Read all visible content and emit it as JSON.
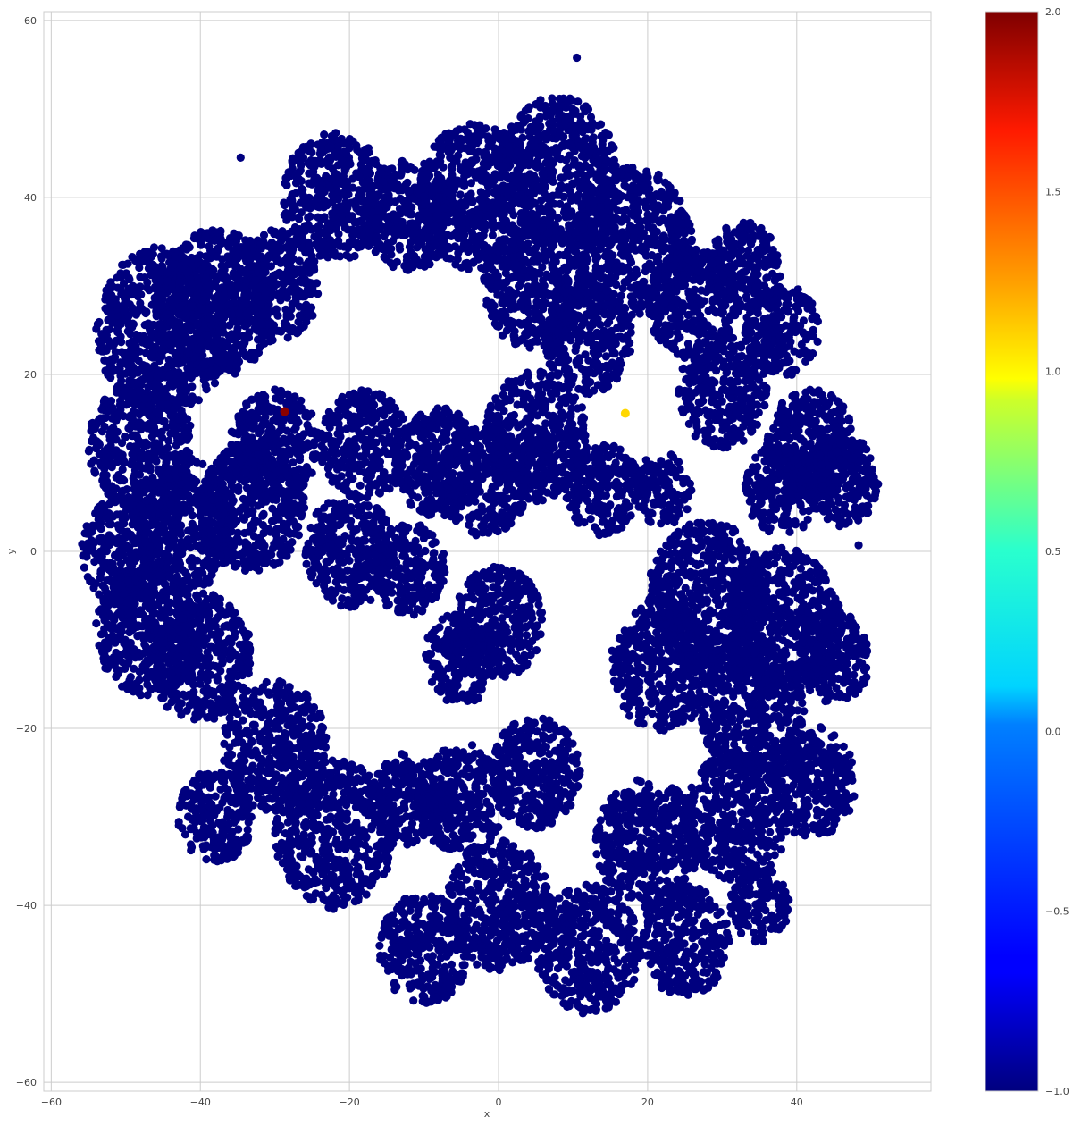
{
  "chart_data": {
    "type": "scatter",
    "title": "",
    "xlabel": "x",
    "ylabel": "y",
    "xlim": [
      -61,
      58
    ],
    "ylim": [
      -61,
      61
    ],
    "xticks": [
      -60,
      -40,
      -20,
      0,
      20,
      40
    ],
    "xtick_labels": [
      "−60",
      "−40",
      "−20",
      "0",
      "20",
      "40"
    ],
    "yticks": [
      -60,
      -40,
      -20,
      0,
      20,
      40,
      60
    ],
    "ytick_labels": [
      "−60",
      "−40",
      "−20",
      "0",
      "20",
      "40",
      "60"
    ],
    "grid": true,
    "colormap": "jet",
    "colorbar": {
      "vmin": -1.0,
      "vmax": 2.0,
      "ticks": [
        -1.0,
        -0.5,
        0.0,
        0.5,
        1.0,
        1.5,
        2.0
      ],
      "tick_labels": [
        "−1.0",
        "−0.5",
        "0.0",
        "0.5",
        "1.0",
        "1.5",
        "2.0"
      ]
    },
    "background_label": -1,
    "background_color": "#00007f",
    "clusters": [
      {
        "cx": -45,
        "cy": 25,
        "r": 9
      },
      {
        "cx": -48,
        "cy": 12,
        "r": 7
      },
      {
        "cx": -38,
        "cy": 28,
        "r": 8
      },
      {
        "cx": -30,
        "cy": 30,
        "r": 6
      },
      {
        "cx": -22,
        "cy": 40,
        "r": 7
      },
      {
        "cx": -12,
        "cy": 38,
        "r": 6
      },
      {
        "cx": -50,
        "cy": 0,
        "r": 6
      },
      {
        "cx": -42,
        "cy": 3,
        "r": 7
      },
      {
        "cx": -33,
        "cy": 5,
        "r": 7
      },
      {
        "cx": -47,
        "cy": -9,
        "r": 7
      },
      {
        "cx": -40,
        "cy": -12,
        "r": 7
      },
      {
        "cx": -30,
        "cy": 12,
        "r": 6
      },
      {
        "cx": -18,
        "cy": 12,
        "r": 6
      },
      {
        "cx": -8,
        "cy": 10,
        "r": 6
      },
      {
        "cx": -20,
        "cy": 0,
        "r": 6
      },
      {
        "cx": -12,
        "cy": -2,
        "r": 5
      },
      {
        "cx": -30,
        "cy": -22,
        "r": 7
      },
      {
        "cx": -38,
        "cy": -30,
        "r": 5
      },
      {
        "cx": -22,
        "cy": -32,
        "r": 8
      },
      {
        "cx": -12,
        "cy": -28,
        "r": 5
      },
      {
        "cx": -3,
        "cy": 40,
        "r": 8
      },
      {
        "cx": 8,
        "cy": 43,
        "r": 8
      },
      {
        "cx": 18,
        "cy": 35,
        "r": 8
      },
      {
        "cx": 5,
        "cy": 30,
        "r": 7
      },
      {
        "cx": 12,
        "cy": 24,
        "r": 6
      },
      {
        "cx": 26,
        "cy": 28,
        "r": 6
      },
      {
        "cx": 33,
        "cy": 32,
        "r": 5
      },
      {
        "cx": 38,
        "cy": 25,
        "r": 5
      },
      {
        "cx": 30,
        "cy": 18,
        "r": 6
      },
      {
        "cx": 5,
        "cy": 13,
        "r": 7
      },
      {
        "cx": -2,
        "cy": 8,
        "r": 6
      },
      {
        "cx": 14,
        "cy": 7,
        "r": 5
      },
      {
        "cx": 22,
        "cy": 7,
        "r": 4
      },
      {
        "cx": 42,
        "cy": 12,
        "r": 6
      },
      {
        "cx": 46,
        "cy": 8,
        "r": 5
      },
      {
        "cx": 38,
        "cy": 7,
        "r": 5
      },
      {
        "cx": 0,
        "cy": -8,
        "r": 6
      },
      {
        "cx": -5,
        "cy": -12,
        "r": 5
      },
      {
        "cx": 28,
        "cy": -5,
        "r": 8
      },
      {
        "cx": 38,
        "cy": -8,
        "r": 8
      },
      {
        "cx": 22,
        "cy": -13,
        "r": 7
      },
      {
        "cx": 34,
        "cy": -18,
        "r": 7
      },
      {
        "cx": 45,
        "cy": -12,
        "r": 5
      },
      {
        "cx": -5,
        "cy": -28,
        "r": 6
      },
      {
        "cx": 5,
        "cy": -25,
        "r": 6
      },
      {
        "cx": 0,
        "cy": -40,
        "r": 7
      },
      {
        "cx": -10,
        "cy": -45,
        "r": 6
      },
      {
        "cx": 12,
        "cy": -45,
        "r": 7
      },
      {
        "cx": 20,
        "cy": -33,
        "r": 7
      },
      {
        "cx": 32,
        "cy": -30,
        "r": 7
      },
      {
        "cx": 42,
        "cy": -26,
        "r": 6
      },
      {
        "cx": 25,
        "cy": -44,
        "r": 6
      },
      {
        "cx": 35,
        "cy": -40,
        "r": 4
      }
    ],
    "highlighted_points": [
      {
        "x": -28.7,
        "y": 15.8,
        "label": 2,
        "color": "#8b0000"
      },
      {
        "x": 17,
        "y": 15.6,
        "label": 1,
        "color": "#ffd700"
      }
    ],
    "outliers": [
      {
        "x": 10.5,
        "y": 55.8
      },
      {
        "x": -34.6,
        "y": 44.5
      },
      {
        "x": 48.3,
        "y": 0.7
      }
    ]
  }
}
